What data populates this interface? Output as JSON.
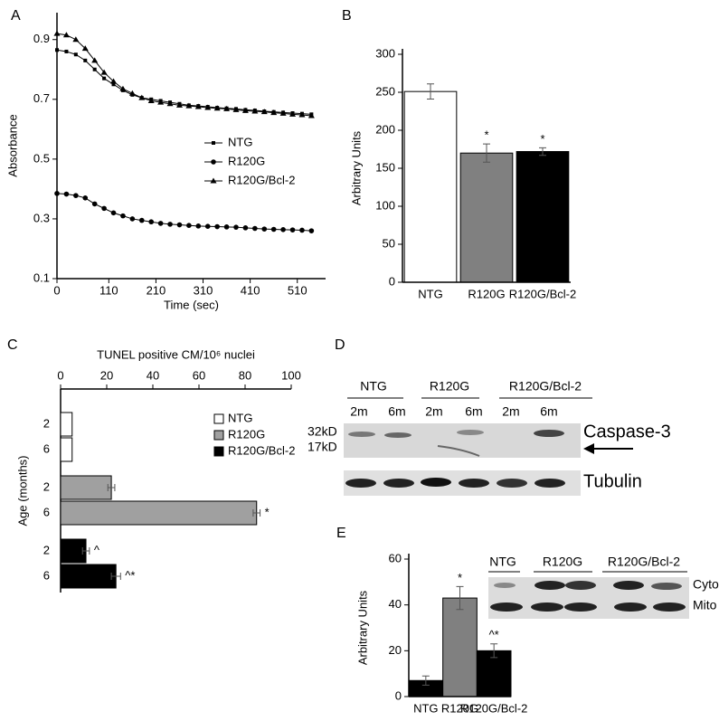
{
  "panel_labels": [
    "A",
    "B",
    "C",
    "D",
    "E"
  ],
  "chart_data": [
    {
      "type": "line",
      "x_label": "Time (sec)",
      "y_label": "Absorbance",
      "x": [
        0,
        20,
        40,
        60,
        80,
        100,
        120,
        140,
        160,
        180,
        200,
        220,
        240,
        260,
        280,
        300,
        320,
        340,
        360,
        380,
        400,
        420,
        440,
        460,
        480,
        500,
        520,
        540
      ],
      "xlim": [
        0,
        570
      ],
      "xticks": [
        0,
        110,
        210,
        310,
        410,
        510
      ],
      "ylim": [
        0.1,
        0.99
      ],
      "yticks": [
        0.1,
        0.3,
        0.5,
        0.7,
        0.9
      ],
      "legend": "center-right",
      "series": [
        {
          "name": "NTG",
          "color": "#000",
          "marker": "square",
          "values": [
            0.865,
            0.86,
            0.85,
            0.83,
            0.8,
            0.77,
            0.75,
            0.73,
            0.715,
            0.705,
            0.7,
            0.695,
            0.69,
            0.685,
            0.68,
            0.678,
            0.675,
            0.672,
            0.67,
            0.668,
            0.665,
            0.663,
            0.66,
            0.658,
            0.656,
            0.654,
            0.652,
            0.65
          ]
        },
        {
          "name": "R120G",
          "color": "#000",
          "marker": "circle",
          "values": [
            0.385,
            0.383,
            0.378,
            0.37,
            0.35,
            0.335,
            0.32,
            0.31,
            0.3,
            0.295,
            0.29,
            0.285,
            0.282,
            0.28,
            0.278,
            0.276,
            0.275,
            0.274,
            0.273,
            0.272,
            0.27,
            0.268,
            0.266,
            0.265,
            0.264,
            0.263,
            0.262,
            0.26
          ]
        },
        {
          "name": "R120G/Bcl-2",
          "color": "#000",
          "marker": "triangle",
          "values": [
            0.92,
            0.915,
            0.9,
            0.87,
            0.83,
            0.79,
            0.76,
            0.735,
            0.72,
            0.705,
            0.695,
            0.69,
            0.685,
            0.68,
            0.678,
            0.675,
            0.672,
            0.67,
            0.668,
            0.665,
            0.662,
            0.66,
            0.658,
            0.655,
            0.653,
            0.65,
            0.648,
            0.645
          ]
        }
      ]
    },
    {
      "type": "bar",
      "y_label": "Arbitrary Units",
      "categories": [
        "NTG",
        "R120G",
        "R120G/Bcl-2"
      ],
      "values": [
        251,
        170,
        172
      ],
      "errors": [
        10,
        12,
        5
      ],
      "annotations": [
        null,
        "*",
        "*"
      ],
      "colors": [
        "#ffffff",
        "#808080",
        "#000000"
      ],
      "ylim": [
        0,
        300
      ],
      "yticks": [
        0,
        50,
        100,
        150,
        200,
        250,
        300
      ]
    },
    {
      "type": "barh",
      "x_label": "TUNEL positive CM/10⁶ nuclei",
      "y_label": "Age (months)",
      "categories": [
        "2",
        "6"
      ],
      "xlim": [
        0,
        100
      ],
      "xticks": [
        0,
        20,
        40,
        60,
        80,
        100
      ],
      "series": [
        {
          "name": "NTG",
          "color": "#ffffff",
          "values": [
            5,
            5
          ]
        },
        {
          "name": "R120G",
          "color": "#a0a0a0",
          "values": [
            22,
            85
          ],
          "errors": [
            1.5,
            1.5
          ],
          "annotations": [
            null,
            "*"
          ]
        },
        {
          "name": "R120G/Bcl-2",
          "color": "#000000",
          "values": [
            11,
            24
          ],
          "errors": [
            1.5,
            2
          ],
          "annotations": [
            "^",
            "^*"
          ]
        }
      ]
    },
    {
      "type": "bar",
      "y_label": "Arbitrary Units",
      "categories": [
        "NTG",
        "R120G",
        "R120G/Bcl-2"
      ],
      "values": [
        7,
        43,
        20
      ],
      "errors": [
        2,
        5,
        3
      ],
      "annotations": [
        null,
        "*",
        "^*"
      ],
      "colors": [
        "#000000",
        "#808080",
        "#000000"
      ],
      "ylim": [
        0,
        60
      ],
      "yticks": [
        0,
        20,
        40,
        60
      ]
    }
  ],
  "blots": {
    "D": {
      "groups": [
        "NTG",
        "R120G",
        "R120G/Bcl-2"
      ],
      "lanes": [
        "2m",
        "6m",
        "2m",
        "6m",
        "2m",
        "6m"
      ],
      "markers": [
        "32kD",
        "17kD"
      ],
      "bands": [
        "Caspase-3",
        "Tubulin"
      ]
    },
    "E": {
      "groups": [
        "NTG",
        "R120G",
        "R120G/Bcl-2"
      ],
      "fractions": [
        "Cyto",
        "Mito"
      ]
    }
  }
}
